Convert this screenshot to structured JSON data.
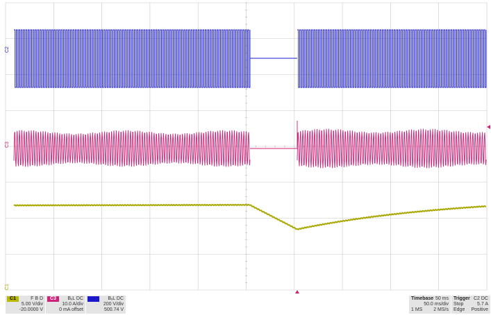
{
  "channels": [
    {
      "tag": "C1",
      "coupling": "F B D",
      "scale": "5.00 V/div",
      "offset": "-20.0000 V",
      "color": "#b8b800"
    },
    {
      "tag": "C3",
      "coupling": "BₓL DC",
      "scale": "10.0 A/div",
      "offset": "0 mA offset",
      "color": "#cc2277"
    },
    {
      "tag": "",
      "coupling": "BₓL DC",
      "scale": "200 V/div",
      "offset": "500.74 V",
      "color": "#1a1acc"
    }
  ],
  "timebase": {
    "label": "Timebase",
    "value": "50 ms",
    "per_div": "50.0 ms/div",
    "record": "1 MS",
    "rate": "2 MS/s"
  },
  "trigger": {
    "label": "Trigger",
    "source": "C2 DC",
    "mode": "Stop",
    "level": "5.7 A",
    "type": "Edge",
    "slope": "Positive"
  },
  "traces": {
    "ch2": {
      "color": "#1a1acc",
      "label": "C2",
      "description": "square-wave voltage burst, interrupted"
    },
    "ch3": {
      "color": "#cc2277",
      "label": "C3",
      "description": "current sine burst, interrupted"
    },
    "ch1": {
      "color": "#a8a800",
      "label": "C1",
      "description": "DC bus voltage with sag and recovery"
    }
  },
  "ground_markers": {
    "ch2": "C2",
    "ch3": "C3",
    "ch1": "C1"
  },
  "grid": {
    "divisions_x": 10,
    "divisions_y": 8,
    "color": "#c8c8c8"
  }
}
